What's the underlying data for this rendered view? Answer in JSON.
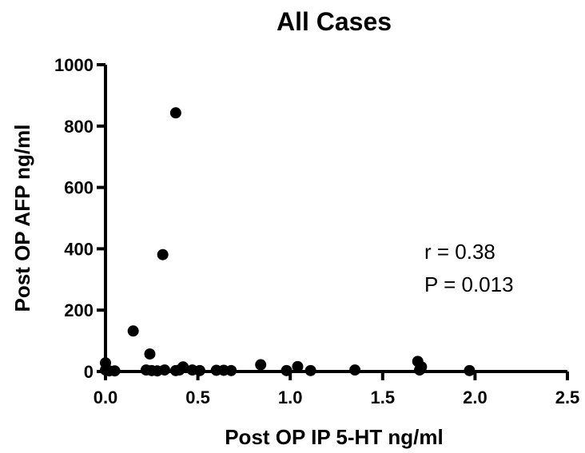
{
  "chart_data": {
    "type": "scatter",
    "title": "All Cases",
    "xlabel": "Post OP IP 5-HT ng/ml",
    "ylabel": "Post OP AFP ng/ml",
    "xlim": [
      0,
      2.5
    ],
    "ylim": [
      0,
      1000
    ],
    "xticks": [
      0.0,
      0.5,
      1.0,
      1.5,
      2.0,
      2.5
    ],
    "xtick_labels": [
      "0.0",
      "0.5",
      "1.0",
      "1.5",
      "2.0",
      "2.5"
    ],
    "yticks": [
      0,
      200,
      400,
      600,
      800,
      1000
    ],
    "ytick_labels": [
      "0",
      "200",
      "400",
      "600",
      "800",
      "1000"
    ],
    "grid": false,
    "annotations": [
      "r = 0.38",
      "P = 0.013"
    ],
    "points": [
      {
        "x": 0.0,
        "y": 28
      },
      {
        "x": 0.0,
        "y": 5
      },
      {
        "x": 0.02,
        "y": 2
      },
      {
        "x": 0.05,
        "y": 2
      },
      {
        "x": 0.15,
        "y": 132
      },
      {
        "x": 0.22,
        "y": 5
      },
      {
        "x": 0.24,
        "y": 57
      },
      {
        "x": 0.25,
        "y": 3
      },
      {
        "x": 0.28,
        "y": 2
      },
      {
        "x": 0.31,
        "y": 381
      },
      {
        "x": 0.32,
        "y": 5
      },
      {
        "x": 0.38,
        "y": 843
      },
      {
        "x": 0.38,
        "y": 3
      },
      {
        "x": 0.4,
        "y": 5
      },
      {
        "x": 0.42,
        "y": 15
      },
      {
        "x": 0.47,
        "y": 5
      },
      {
        "x": 0.51,
        "y": 3
      },
      {
        "x": 0.6,
        "y": 4
      },
      {
        "x": 0.64,
        "y": 4
      },
      {
        "x": 0.68,
        "y": 3
      },
      {
        "x": 0.84,
        "y": 22
      },
      {
        "x": 0.98,
        "y": 3
      },
      {
        "x": 1.04,
        "y": 16
      },
      {
        "x": 1.11,
        "y": 3
      },
      {
        "x": 1.35,
        "y": 5
      },
      {
        "x": 1.69,
        "y": 33
      },
      {
        "x": 1.7,
        "y": 5
      },
      {
        "x": 1.71,
        "y": 15
      },
      {
        "x": 1.97,
        "y": 3
      }
    ]
  }
}
